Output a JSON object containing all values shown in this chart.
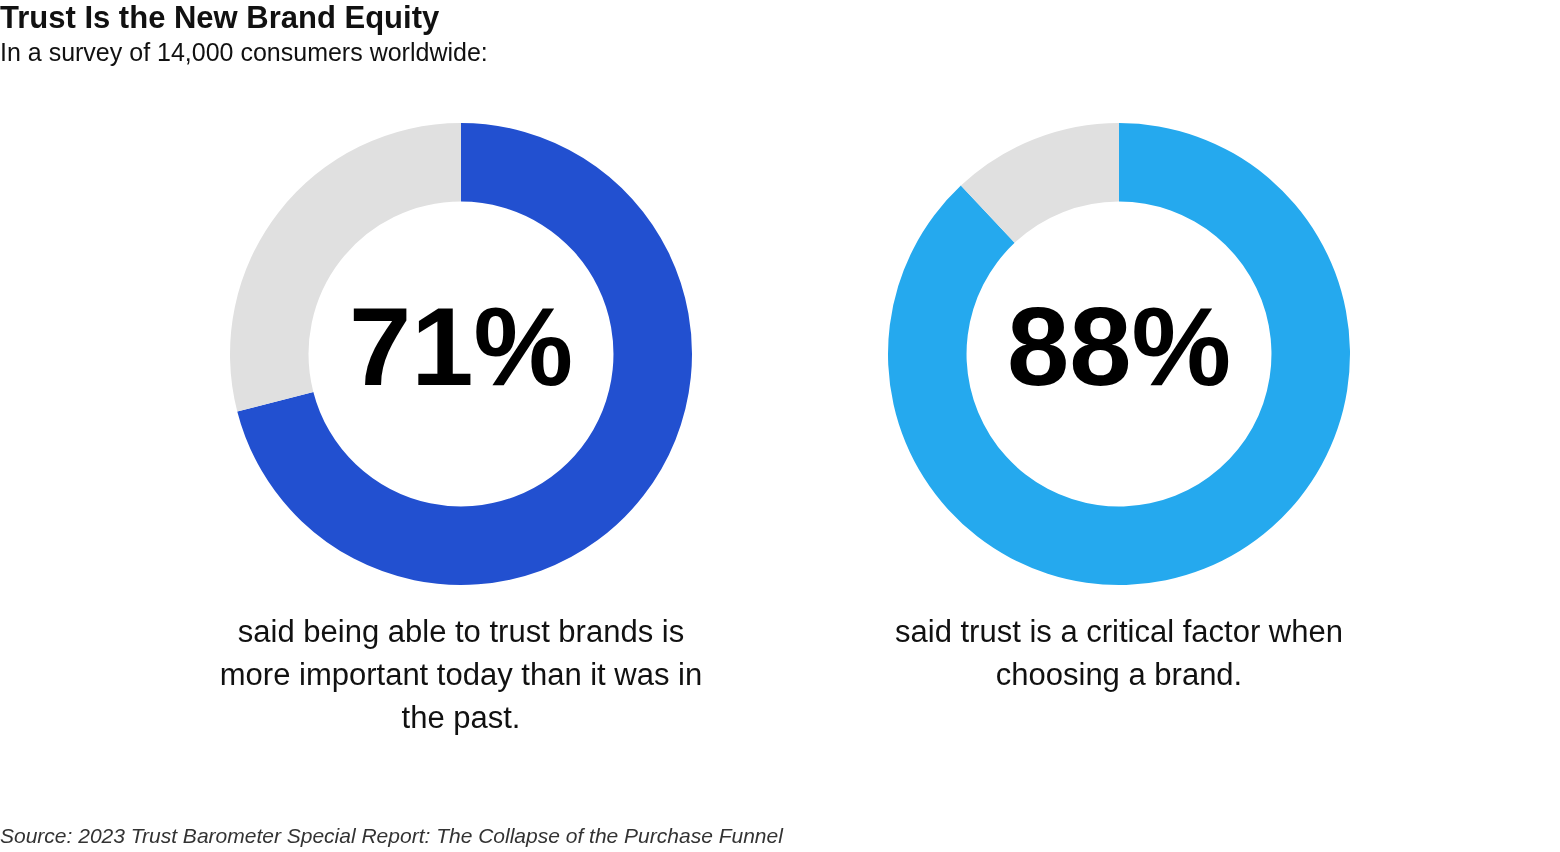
{
  "chart_data": [
    {
      "type": "donut",
      "title": "Trust Is the New Brand Equity",
      "subtitle": "In a survey of 14,000 consumers worldwide:",
      "categories": [
        null,
        null
      ],
      "values": [
        71,
        29
      ],
      "colors": [
        "#2250d0",
        "#e0e0e0"
      ],
      "value_labels": [
        "71%",
        null
      ],
      "legend": false,
      "annotations": [
        "said being able to trust brands is more important today than it was in the past.",
        "Source: 2023 Trust Barometer Special Report: The Collapse of the Purchase Funnel"
      ]
    },
    {
      "type": "donut",
      "categories": [
        null,
        null
      ],
      "values": [
        88,
        12
      ],
      "colors": [
        "#25a9ee",
        "#e0e0e0"
      ],
      "value_labels": [
        "88%",
        null
      ],
      "legend": false,
      "annotations": [
        "said trust is a critical factor when choosing a brand."
      ]
    }
  ]
}
